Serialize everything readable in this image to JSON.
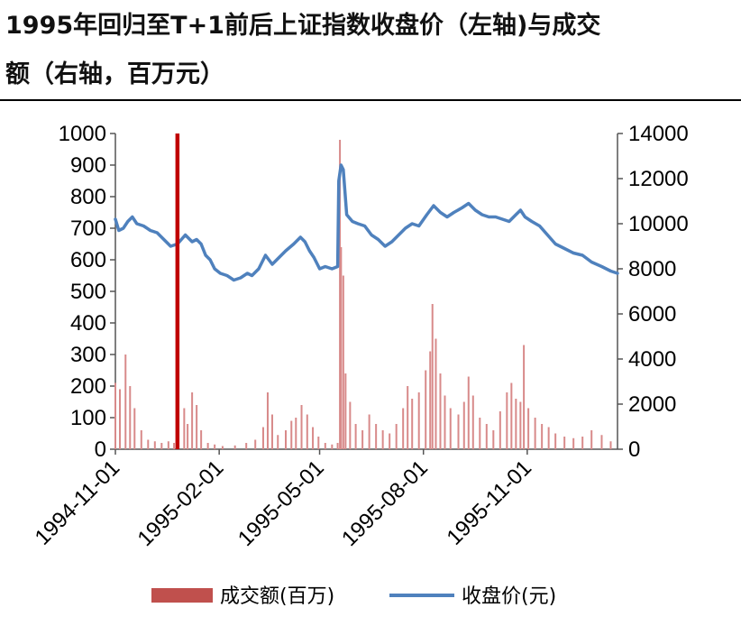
{
  "title": {
    "line1": "1995年回归至T+1前后上证指数收盘价（左轴)与成交",
    "line2": "额（右轴，百万元）"
  },
  "chart_data": {
    "type": "bar+line",
    "title": "1995年回归至T+1前后上证指数收盘价（左轴)与成交额（右轴，百万元）",
    "left_axis": {
      "min": 0,
      "max": 1000,
      "ticks": [
        "0",
        "100",
        "200",
        "300",
        "400",
        "500",
        "600",
        "700",
        "800",
        "900",
        "1000"
      ]
    },
    "right_axis": {
      "min": 0,
      "max": 14000,
      "ticks": [
        "0",
        "2000",
        "4000",
        "6000",
        "8000",
        "10000",
        "12000",
        "14000"
      ]
    },
    "x_axis": {
      "start": "1994-11-01",
      "end": "1996-01-20",
      "ticks": [
        "1994-11-01",
        "1995-02-01",
        "1995-05-01",
        "1995-08-01",
        "1995-11-01"
      ]
    },
    "marker": {
      "date": "1994-12-26",
      "value": 1000,
      "color": "#c00000",
      "axis": "left"
    },
    "colors": {
      "bars": "#d88a8a",
      "line": "#4f81bd",
      "marker": "#c00000",
      "legend_bar": "#c0504d"
    },
    "series": [
      {
        "name": "成交额(百万)",
        "axis": "left",
        "type": "bar",
        "points": [
          [
            "1994-11-01",
            210
          ],
          [
            "1994-11-05",
            190
          ],
          [
            "1994-11-10",
            300
          ],
          [
            "1994-11-14",
            200
          ],
          [
            "1994-11-18",
            130
          ],
          [
            "1994-11-24",
            60
          ],
          [
            "1994-11-30",
            30
          ],
          [
            "1994-12-06",
            25
          ],
          [
            "1994-12-12",
            20
          ],
          [
            "1994-12-18",
            25
          ],
          [
            "1994-12-23",
            20
          ],
          [
            "1995-01-01",
            130
          ],
          [
            "1995-01-04",
            80
          ],
          [
            "1995-01-08",
            180
          ],
          [
            "1995-01-12",
            140
          ],
          [
            "1995-01-16",
            60
          ],
          [
            "1995-01-22",
            20
          ],
          [
            "1995-01-28",
            15
          ],
          [
            "1995-02-04",
            10
          ],
          [
            "1995-02-15",
            12
          ],
          [
            "1995-02-25",
            20
          ],
          [
            "1995-03-05",
            30
          ],
          [
            "1995-03-12",
            70
          ],
          [
            "1995-03-16",
            180
          ],
          [
            "1995-03-20",
            110
          ],
          [
            "1995-03-25",
            45
          ],
          [
            "1995-04-01",
            60
          ],
          [
            "1995-04-06",
            90
          ],
          [
            "1995-04-10",
            100
          ],
          [
            "1995-04-15",
            140
          ],
          [
            "1995-04-20",
            110
          ],
          [
            "1995-04-25",
            70
          ],
          [
            "1995-04-30",
            40
          ],
          [
            "1995-05-06",
            20
          ],
          [
            "1995-05-12",
            15
          ],
          [
            "1995-05-17",
            20
          ],
          [
            "1995-05-19",
            980
          ],
          [
            "1995-05-20",
            640
          ],
          [
            "1995-05-22",
            550
          ],
          [
            "1995-05-24",
            240
          ],
          [
            "1995-05-28",
            150
          ],
          [
            "1995-06-02",
            80
          ],
          [
            "1995-06-08",
            60
          ],
          [
            "1995-06-14",
            110
          ],
          [
            "1995-06-20",
            80
          ],
          [
            "1995-06-26",
            60
          ],
          [
            "1995-07-02",
            50
          ],
          [
            "1995-07-08",
            80
          ],
          [
            "1995-07-14",
            130
          ],
          [
            "1995-07-18",
            200
          ],
          [
            "1995-07-22",
            160
          ],
          [
            "1995-07-28",
            180
          ],
          [
            "1995-08-03",
            250
          ],
          [
            "1995-08-07",
            310
          ],
          [
            "1995-08-09",
            460
          ],
          [
            "1995-08-12",
            350
          ],
          [
            "1995-08-16",
            240
          ],
          [
            "1995-08-20",
            170
          ],
          [
            "1995-08-25",
            130
          ],
          [
            "1995-09-01",
            110
          ],
          [
            "1995-09-06",
            150
          ],
          [
            "1995-09-10",
            230
          ],
          [
            "1995-09-14",
            170
          ],
          [
            "1995-09-20",
            100
          ],
          [
            "1995-09-26",
            80
          ],
          [
            "1995-10-02",
            60
          ],
          [
            "1995-10-08",
            120
          ],
          [
            "1995-10-14",
            180
          ],
          [
            "1995-10-18",
            210
          ],
          [
            "1995-10-22",
            160
          ],
          [
            "1995-10-26",
            150
          ],
          [
            "1995-10-29",
            330
          ],
          [
            "1995-11-02",
            130
          ],
          [
            "1995-11-08",
            100
          ],
          [
            "1995-11-14",
            80
          ],
          [
            "1995-11-20",
            70
          ],
          [
            "1995-11-26",
            50
          ],
          [
            "1995-12-04",
            40
          ],
          [
            "1995-12-12",
            35
          ],
          [
            "1995-12-20",
            40
          ],
          [
            "1995-12-28",
            60
          ],
          [
            "1996-01-06",
            45
          ],
          [
            "1996-01-14",
            25
          ]
        ]
      },
      {
        "name": "收盘价(元)",
        "axis": "right",
        "type": "line",
        "points": [
          [
            "1994-11-01",
            10200
          ],
          [
            "1994-11-04",
            9700
          ],
          [
            "1994-11-08",
            9800
          ],
          [
            "1994-11-12",
            10100
          ],
          [
            "1994-11-16",
            10300
          ],
          [
            "1994-11-20",
            10000
          ],
          [
            "1994-11-26",
            9900
          ],
          [
            "1994-12-02",
            9700
          ],
          [
            "1994-12-08",
            9600
          ],
          [
            "1994-12-14",
            9300
          ],
          [
            "1994-12-20",
            9000
          ],
          [
            "1994-12-26",
            9100
          ],
          [
            "1995-01-02",
            9500
          ],
          [
            "1995-01-08",
            9200
          ],
          [
            "1995-01-12",
            9300
          ],
          [
            "1995-01-16",
            9100
          ],
          [
            "1995-01-20",
            8600
          ],
          [
            "1995-01-24",
            8400
          ],
          [
            "1995-01-28",
            8000
          ],
          [
            "1995-02-02",
            7800
          ],
          [
            "1995-02-08",
            7700
          ],
          [
            "1995-02-14",
            7500
          ],
          [
            "1995-02-20",
            7600
          ],
          [
            "1995-02-26",
            7800
          ],
          [
            "1995-03-02",
            7700
          ],
          [
            "1995-03-08",
            8000
          ],
          [
            "1995-03-14",
            8600
          ],
          [
            "1995-03-20",
            8200
          ],
          [
            "1995-03-26",
            8500
          ],
          [
            "1995-04-01",
            8800
          ],
          [
            "1995-04-08",
            9100
          ],
          [
            "1995-04-14",
            9400
          ],
          [
            "1995-04-18",
            9200
          ],
          [
            "1995-04-22",
            8800
          ],
          [
            "1995-04-26",
            8500
          ],
          [
            "1995-05-01",
            8000
          ],
          [
            "1995-05-06",
            8100
          ],
          [
            "1995-05-12",
            8000
          ],
          [
            "1995-05-17",
            8100
          ],
          [
            "1995-05-18",
            11900
          ],
          [
            "1995-05-20",
            12600
          ],
          [
            "1995-05-22",
            12400
          ],
          [
            "1995-05-25",
            10400
          ],
          [
            "1995-05-30",
            10100
          ],
          [
            "1995-06-04",
            10000
          ],
          [
            "1995-06-10",
            9900
          ],
          [
            "1995-06-16",
            9500
          ],
          [
            "1995-06-22",
            9300
          ],
          [
            "1995-06-28",
            9000
          ],
          [
            "1995-07-04",
            9200
          ],
          [
            "1995-07-10",
            9500
          ],
          [
            "1995-07-16",
            9800
          ],
          [
            "1995-07-22",
            10000
          ],
          [
            "1995-07-28",
            9900
          ],
          [
            "1995-08-04",
            10400
          ],
          [
            "1995-08-10",
            10800
          ],
          [
            "1995-08-16",
            10500
          ],
          [
            "1995-08-22",
            10300
          ],
          [
            "1995-08-28",
            10500
          ],
          [
            "1995-09-04",
            10700
          ],
          [
            "1995-09-10",
            10900
          ],
          [
            "1995-09-16",
            10600
          ],
          [
            "1995-09-22",
            10400
          ],
          [
            "1995-09-28",
            10300
          ],
          [
            "1995-10-04",
            10300
          ],
          [
            "1995-10-10",
            10200
          ],
          [
            "1995-10-16",
            10100
          ],
          [
            "1995-10-22",
            10400
          ],
          [
            "1995-10-26",
            10600
          ],
          [
            "1995-10-30",
            10300
          ],
          [
            "1995-11-05",
            10100
          ],
          [
            "1995-11-12",
            9900
          ],
          [
            "1995-11-19",
            9500
          ],
          [
            "1995-11-26",
            9100
          ],
          [
            "1995-12-04",
            8900
          ],
          [
            "1995-12-12",
            8700
          ],
          [
            "1995-12-20",
            8600
          ],
          [
            "1995-12-28",
            8300
          ],
          [
            "1996-01-06",
            8100
          ],
          [
            "1996-01-14",
            7900
          ],
          [
            "1996-01-20",
            7800
          ]
        ]
      }
    ]
  }
}
